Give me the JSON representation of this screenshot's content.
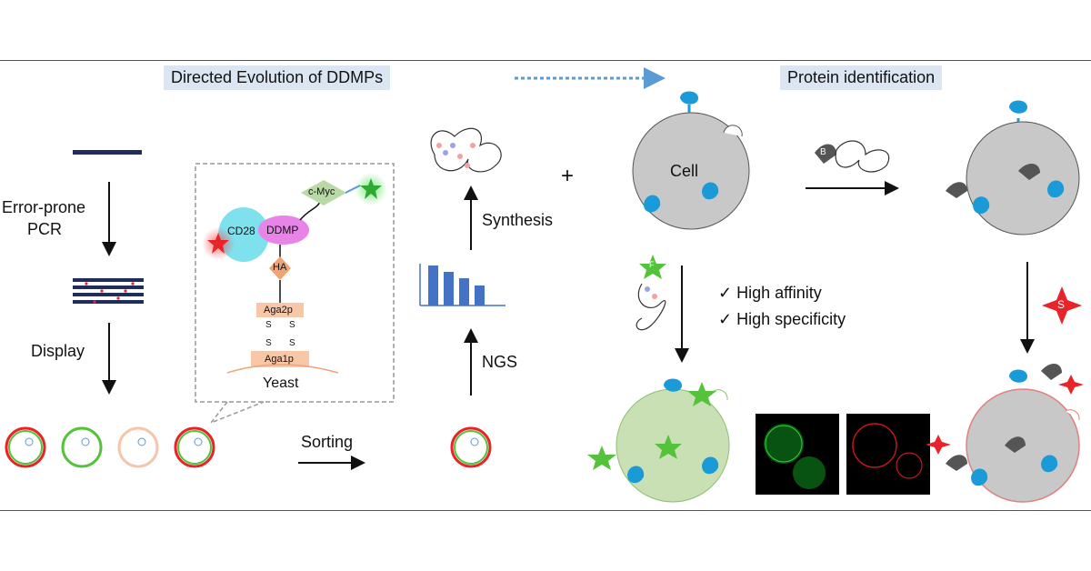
{
  "headers": {
    "left": "Directed Evolution of DDMPs",
    "right": "Protein identification"
  },
  "steps": {
    "error_prone_line1": "Error-prone",
    "error_prone_line2": "PCR",
    "display": "Display",
    "sorting": "Sorting",
    "synthesis": "Synthesis",
    "ngs": "NGS",
    "plus": "+"
  },
  "inset": {
    "cd28": "CD28",
    "ddmp": "DDMP",
    "cmyc": "c-Myc",
    "ha": "HA",
    "aga2p": "Aga2p",
    "aga1p": "Aga1p",
    "s": "S",
    "yeast": "Yeast"
  },
  "cell_label": "Cell",
  "properties": [
    "✓ High affinity",
    "✓ High specificity"
  ],
  "badges": {
    "f": "F",
    "s": "S",
    "b": "B"
  },
  "colors": {
    "header_bg": "#dce6f2",
    "protein_blue": "#1a9ad6",
    "cell_gray": "#c8c8c8",
    "green_fluor": "#55c23b",
    "red_fluor": "#e8242b",
    "bar_blue": "#4472c4",
    "dna_navy": "#1f2d5c"
  },
  "bars": [
    0.9,
    0.75,
    0.62,
    0.45
  ]
}
